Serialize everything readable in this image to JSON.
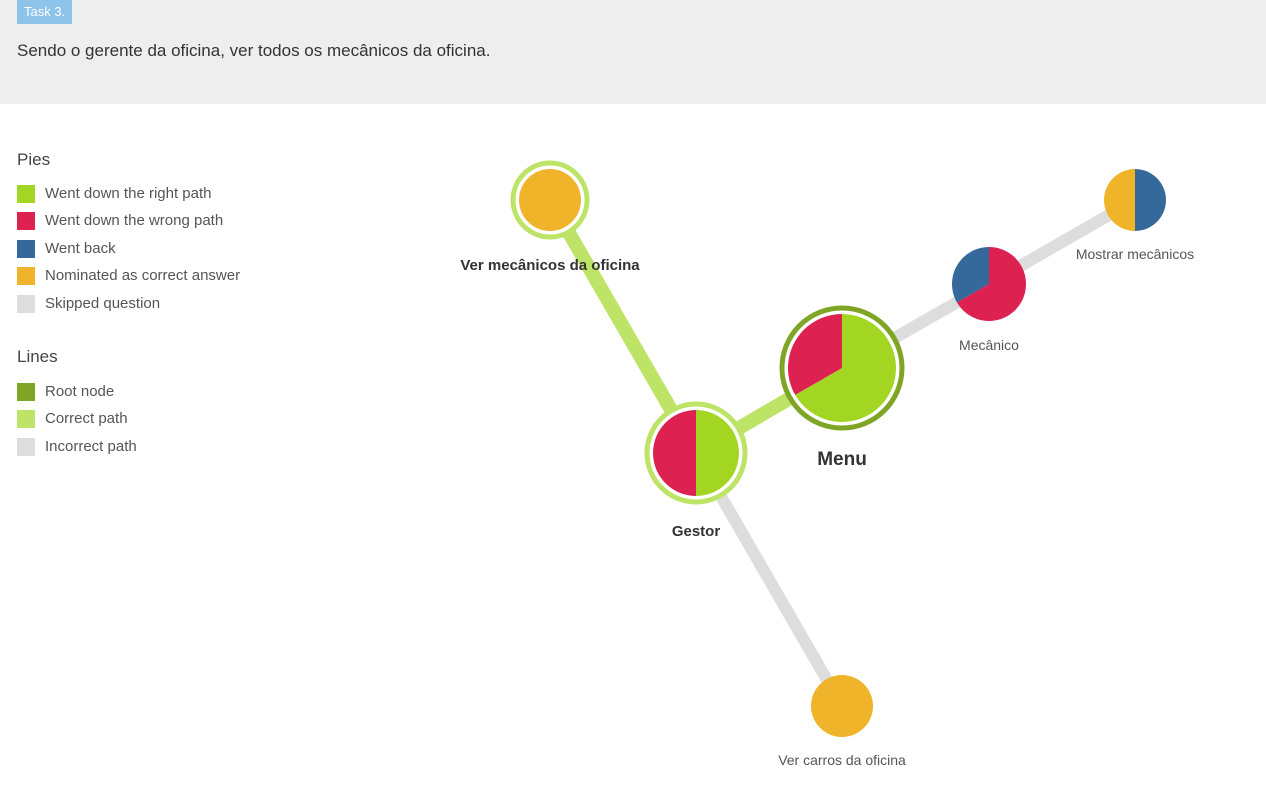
{
  "task": {
    "badge": "Task 3.",
    "description": "Sendo o gerente da oficina, ver todos os mecânicos da oficina."
  },
  "legend": {
    "pies_title": "Pies",
    "pies": [
      {
        "label": "Went down the right path",
        "color": "#a3d623"
      },
      {
        "label": "Went down the wrong path",
        "color": "#dd2150"
      },
      {
        "label": "Went back",
        "color": "#35689b"
      },
      {
        "label": "Nominated as correct answer",
        "color": "#efb429"
      },
      {
        "label": "Skipped question",
        "color": "#dedede"
      }
    ],
    "lines_title": "Lines",
    "lines": [
      {
        "label": "Root node",
        "color": "#7ea524"
      },
      {
        "label": "Correct path",
        "color": "#bde466"
      },
      {
        "label": "Incorrect path",
        "color": "#dddddd"
      }
    ]
  },
  "tree": {
    "nodes": [
      {
        "id": "menu",
        "label": "Menu",
        "ring": "root",
        "bold": true,
        "slices": [
          {
            "fraction": 0.667,
            "color": "#a3d623"
          },
          {
            "fraction": 0.333,
            "color": "#dd2150"
          }
        ]
      },
      {
        "id": "gestor",
        "label": "Gestor",
        "ring": "correct",
        "bold": true,
        "slices": [
          {
            "fraction": 0.5,
            "color": "#a3d623"
          },
          {
            "fraction": 0.5,
            "color": "#dd2150"
          }
        ]
      },
      {
        "id": "ver-mecanicos",
        "label": "Ver mecânicos da oficina",
        "ring": "correct",
        "bold": true,
        "slices": [
          {
            "fraction": 1,
            "color": "#efb429"
          }
        ]
      },
      {
        "id": "ver-carros",
        "label": "Ver carros da oficina",
        "ring": "none",
        "bold": false,
        "slices": [
          {
            "fraction": 1,
            "color": "#efb429"
          }
        ]
      },
      {
        "id": "mecanico",
        "label": "Mecânico",
        "ring": "none",
        "bold": false,
        "slices": [
          {
            "fraction": 0.667,
            "color": "#dd2150"
          },
          {
            "fraction": 0.333,
            "color": "#35689b"
          }
        ]
      },
      {
        "id": "mostrar-mecanicos",
        "label": "Mostrar mecânicos",
        "ring": "none",
        "bold": false,
        "slices": [
          {
            "fraction": 0.5,
            "color": "#35689b"
          },
          {
            "fraction": 0.5,
            "color": "#efb429"
          }
        ]
      }
    ],
    "edges": [
      {
        "from": "menu",
        "to": "gestor",
        "type": "correct"
      },
      {
        "from": "gestor",
        "to": "ver-mecanicos",
        "type": "correct"
      },
      {
        "from": "gestor",
        "to": "ver-carros",
        "type": "incorrect"
      },
      {
        "from": "menu",
        "to": "mecanico",
        "type": "incorrect"
      },
      {
        "from": "mecanico",
        "to": "mostrar-mecanicos",
        "type": "incorrect"
      }
    ]
  }
}
